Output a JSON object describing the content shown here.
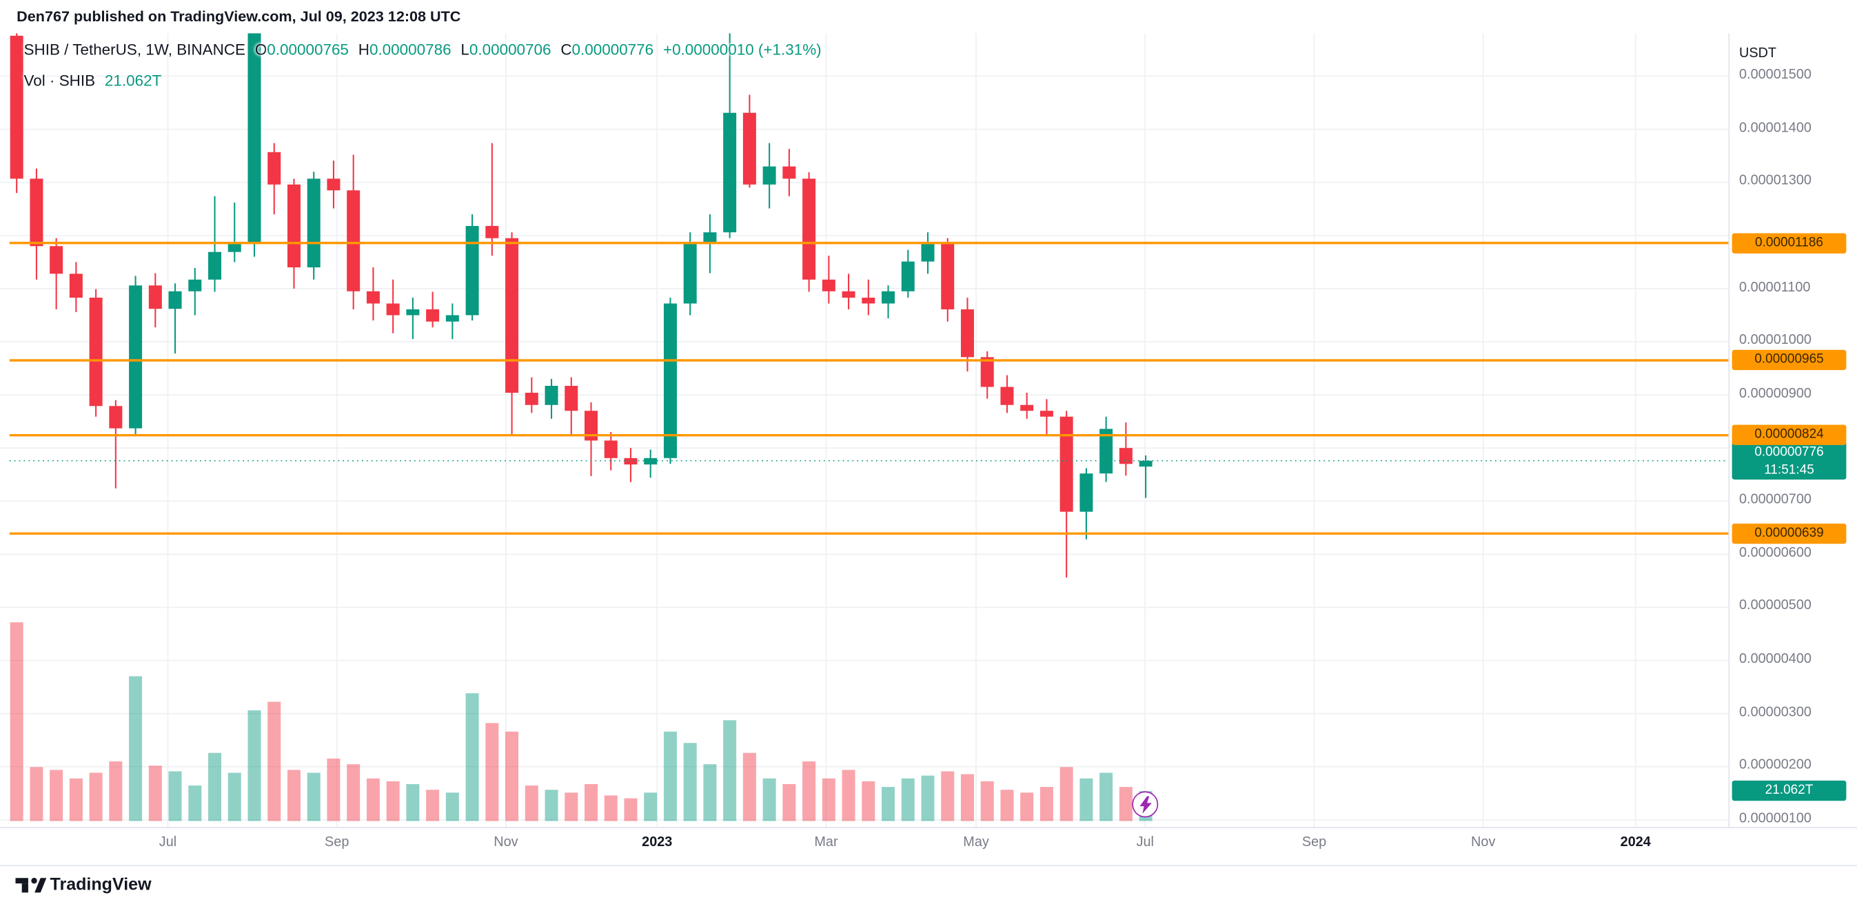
{
  "header": {
    "publish_line": "Den767 published on TradingView.com, Jul 09, 2023 12:08 UTC"
  },
  "legend": {
    "symbol": "SHIB / TetherUS, 1W, BINANCE",
    "ohlc": [
      {
        "k": "O",
        "v": "0.00000765"
      },
      {
        "k": "H",
        "v": "0.00000786"
      },
      {
        "k": "L",
        "v": "0.00000706"
      },
      {
        "k": "C",
        "v": "0.00000776"
      }
    ],
    "change": "+0.00000010 (+1.31%)",
    "vol_label": "Vol · SHIB",
    "vol_value": "21.062T"
  },
  "price_axis": {
    "unit": "USDT",
    "labels": [
      {
        "text": "0.00001500",
        "value": 1500
      },
      {
        "text": "0.00001400",
        "value": 1400
      },
      {
        "text": "0.00001300",
        "value": 1300
      },
      {
        "text": "0.00001100",
        "value": 1100
      },
      {
        "text": "0.00001000",
        "value": 1000
      },
      {
        "text": "0.00000900",
        "value": 900
      },
      {
        "text": "0.00000700",
        "value": 700
      },
      {
        "text": "0.00000600",
        "value": 600
      },
      {
        "text": "0.00000500",
        "value": 500
      },
      {
        "text": "0.00000400",
        "value": 400
      },
      {
        "text": "0.00000300",
        "value": 300
      },
      {
        "text": "0.00000200",
        "value": 200
      },
      {
        "text": "0.00000100",
        "value": 100
      }
    ],
    "level_badges": [
      {
        "text": "0.00001186",
        "price": 1186
      },
      {
        "text": "0.00000965",
        "price": 965
      },
      {
        "text": "0.00000824",
        "price": 824
      },
      {
        "text": "0.00000639",
        "price": 639
      }
    ],
    "current": {
      "text": "0.00000776",
      "countdown": "11:51:45"
    },
    "volume_badge": "21.062T"
  },
  "time_axis": {
    "labels": [
      {
        "text": "Jul",
        "x": 141
      },
      {
        "text": "Sep",
        "x": 283
      },
      {
        "text": "Nov",
        "x": 425
      },
      {
        "text": "2023",
        "x": 552,
        "year": true
      },
      {
        "text": "Mar",
        "x": 694
      },
      {
        "text": "May",
        "x": 820
      },
      {
        "text": "Jul",
        "x": 962
      },
      {
        "text": "Sep",
        "x": 1104
      },
      {
        "text": "Nov",
        "x": 1246
      },
      {
        "text": "2024",
        "x": 1374,
        "year": true
      }
    ]
  },
  "footer": {
    "brand": "TradingView"
  },
  "chart_data": {
    "type": "candlestick",
    "title": "SHIB / TetherUS, 1W, BINANCE",
    "price_unit": "1e-8 USDT (776 means 0.00000776)",
    "volume_unit": "trillion SHIB",
    "ylim": [
      100,
      1500
    ],
    "grid": true,
    "legend_position": "top-left",
    "current_price": 776,
    "countdown": "11:51:45",
    "levels": [
      {
        "price": 1186,
        "label": "0.00001186"
      },
      {
        "price": 965,
        "label": "0.00000965"
      },
      {
        "price": 824,
        "label": "0.00000824"
      },
      {
        "price": 639,
        "label": "0.00000639"
      }
    ],
    "colors": {
      "up": "#089981",
      "down": "#f23645",
      "vol_up": "rgba(8,153,129,0.45)",
      "vol_down": "rgba(242,54,69,0.45)",
      "level": "#ff9800",
      "grid": "#eef0f3",
      "axis_text": "#787b86"
    },
    "candles_format": [
      "open",
      "high",
      "low",
      "close",
      "volume"
    ],
    "candles": [
      [
        1576,
        1581,
        1280,
        1307,
        140
      ],
      [
        1307,
        1326,
        1117,
        1180,
        38
      ],
      [
        1180,
        1195,
        1061,
        1128,
        36
      ],
      [
        1128,
        1150,
        1056,
        1083,
        30
      ],
      [
        1083,
        1099,
        859,
        879,
        34
      ],
      [
        879,
        890,
        724,
        837,
        42
      ],
      [
        837,
        1124,
        822,
        1106,
        102
      ],
      [
        1106,
        1129,
        1027,
        1062,
        39
      ],
      [
        1062,
        1110,
        978,
        1095,
        35
      ],
      [
        1095,
        1139,
        1050,
        1117,
        25
      ],
      [
        1117,
        1274,
        1094,
        1169,
        48
      ],
      [
        1169,
        1262,
        1150,
        1184,
        34
      ],
      [
        1184,
        1590,
        1160,
        1581,
        78
      ],
      [
        1357,
        1374,
        1240,
        1296,
        84
      ],
      [
        1296,
        1307,
        1100,
        1140,
        36
      ],
      [
        1140,
        1320,
        1117,
        1307,
        34
      ],
      [
        1307,
        1341,
        1251,
        1285,
        44
      ],
      [
        1285,
        1352,
        1061,
        1095,
        40
      ],
      [
        1095,
        1140,
        1040,
        1072,
        30
      ],
      [
        1072,
        1117,
        1016,
        1050,
        28
      ],
      [
        1050,
        1083,
        1005,
        1061,
        26
      ],
      [
        1061,
        1094,
        1027,
        1038,
        22
      ],
      [
        1038,
        1072,
        1005,
        1050,
        20
      ],
      [
        1050,
        1240,
        1040,
        1218,
        90
      ],
      [
        1218,
        1374,
        1162,
        1195,
        69
      ],
      [
        1195,
        1206,
        825,
        904,
        63
      ],
      [
        904,
        933,
        866,
        881,
        25
      ],
      [
        881,
        930,
        855,
        917,
        22
      ],
      [
        917,
        933,
        825,
        870,
        20
      ],
      [
        870,
        886,
        747,
        814,
        26
      ],
      [
        814,
        830,
        758,
        781,
        18
      ],
      [
        781,
        800,
        736,
        769,
        16
      ],
      [
        769,
        797,
        744,
        781,
        20
      ],
      [
        781,
        1083,
        770,
        1072,
        63
      ],
      [
        1072,
        1206,
        1050,
        1184,
        55
      ],
      [
        1184,
        1240,
        1129,
        1206,
        40
      ],
      [
        1206,
        1581,
        1195,
        1431,
        71
      ],
      [
        1431,
        1465,
        1290,
        1296,
        48
      ],
      [
        1296,
        1374,
        1251,
        1330,
        30
      ],
      [
        1330,
        1363,
        1274,
        1307,
        26
      ],
      [
        1307,
        1319,
        1094,
        1117,
        42
      ],
      [
        1117,
        1162,
        1072,
        1095,
        30
      ],
      [
        1095,
        1128,
        1061,
        1083,
        36
      ],
      [
        1083,
        1117,
        1050,
        1072,
        28
      ],
      [
        1072,
        1106,
        1044,
        1095,
        24
      ],
      [
        1095,
        1173,
        1083,
        1151,
        30
      ],
      [
        1151,
        1206,
        1128,
        1184,
        32
      ],
      [
        1184,
        1195,
        1038,
        1061,
        35
      ],
      [
        1061,
        1083,
        944,
        971,
        33
      ],
      [
        971,
        982,
        893,
        915,
        28
      ],
      [
        915,
        937,
        866,
        881,
        22
      ],
      [
        881,
        904,
        855,
        870,
        20
      ],
      [
        870,
        892,
        825,
        859,
        24
      ],
      [
        859,
        870,
        556,
        680,
        38
      ],
      [
        680,
        762,
        628,
        752,
        30
      ],
      [
        752,
        859,
        736,
        836,
        34
      ],
      [
        800,
        848,
        748,
        770,
        24
      ],
      [
        765,
        786,
        706,
        776,
        21.062
      ]
    ]
  }
}
